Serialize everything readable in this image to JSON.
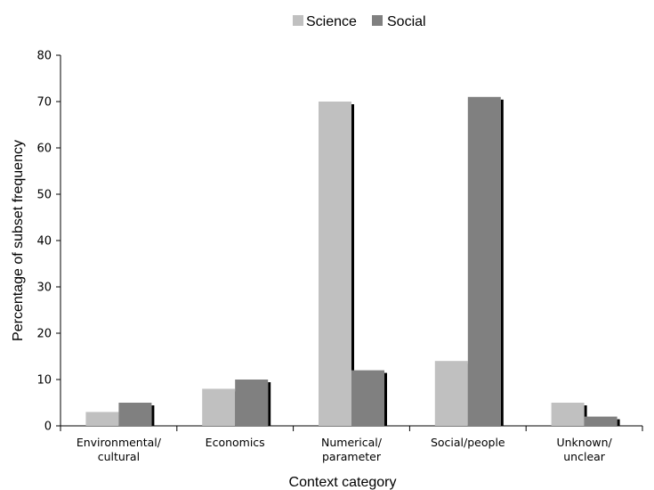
{
  "chart_data": {
    "type": "bar",
    "title": "",
    "xlabel": "Context category",
    "ylabel": "Percentage of subset frequency",
    "ylim": [
      0,
      80
    ],
    "yticks": [
      0,
      10,
      20,
      30,
      40,
      50,
      60,
      70,
      80
    ],
    "grid": false,
    "legend": "top-center",
    "categories": [
      [
        "Environmental/",
        "cultural"
      ],
      [
        "Economics"
      ],
      [
        "Numerical/",
        "parameter"
      ],
      [
        "Social/people"
      ],
      [
        "Unknown/",
        "unclear"
      ]
    ],
    "series": [
      {
        "name": "Science",
        "color": "#c0c0c0",
        "values": [
          3,
          8,
          70,
          14,
          5
        ]
      },
      {
        "name": "Social",
        "color": "#808080",
        "values": [
          5,
          10,
          12,
          71,
          2
        ]
      }
    ],
    "shadow_color": "#000000"
  }
}
